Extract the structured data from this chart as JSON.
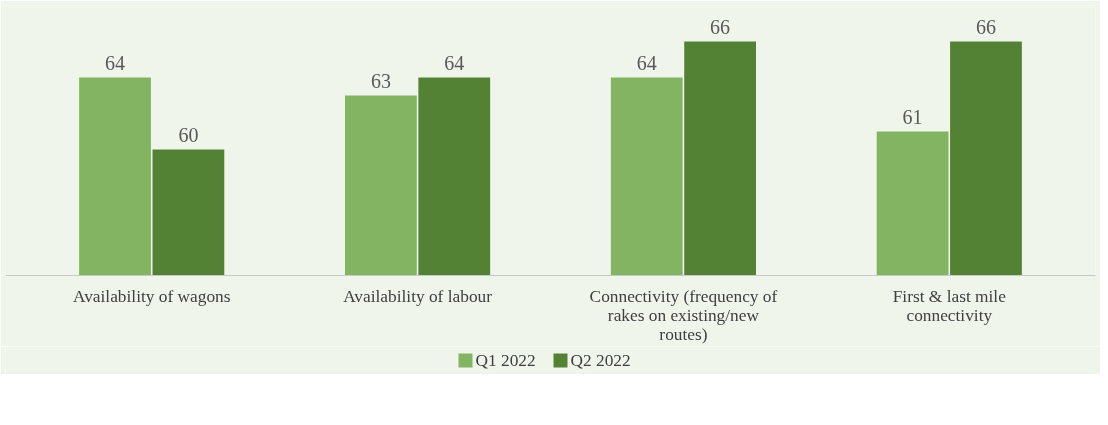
{
  "chart_data": {
    "type": "bar",
    "categories": [
      "Availability of wagons",
      "Availability of labour",
      "Connectivity (frequency of rakes on existing/new routes)",
      "First & last mile connectivity"
    ],
    "series": [
      {
        "name": "Q1 2022",
        "color": "#82b462",
        "values": [
          64,
          63,
          64,
          61
        ]
      },
      {
        "name": "Q2 2022",
        "color": "#548235",
        "values": [
          60,
          64,
          66,
          66
        ]
      }
    ],
    "ylim": [
      53,
      68
    ],
    "tick_labels": "x",
    "data_labels": true,
    "legend": "bottom",
    "grid": false
  }
}
